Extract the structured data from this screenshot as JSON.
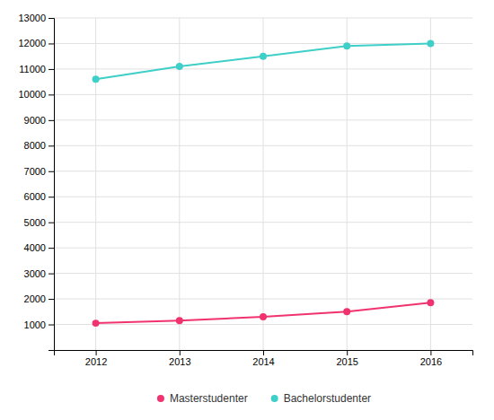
{
  "chart_data": {
    "type": "line",
    "x": [
      2012,
      2013,
      2014,
      2015,
      2016
    ],
    "xlim": [
      2011.5,
      2016.5
    ],
    "xticks": [
      2012,
      2013,
      2014,
      2015,
      2016
    ],
    "ylim": [
      0,
      13000
    ],
    "yticks": [
      1000,
      2000,
      3000,
      4000,
      5000,
      6000,
      7000,
      8000,
      9000,
      10000,
      11000,
      12000,
      13000
    ],
    "grid": true,
    "legend": "bottom",
    "series": [
      {
        "name": "Masterstudenter",
        "color": "#f0336e",
        "marker": "circle",
        "line_style": "solid",
        "values": [
          1050,
          1150,
          1300,
          1500,
          1850
        ]
      },
      {
        "name": "Bachelorstudenter",
        "color": "#3ecfc8",
        "marker": "circle",
        "line_style": "solid",
        "values": [
          10600,
          11100,
          11500,
          11900,
          12000
        ]
      }
    ]
  }
}
